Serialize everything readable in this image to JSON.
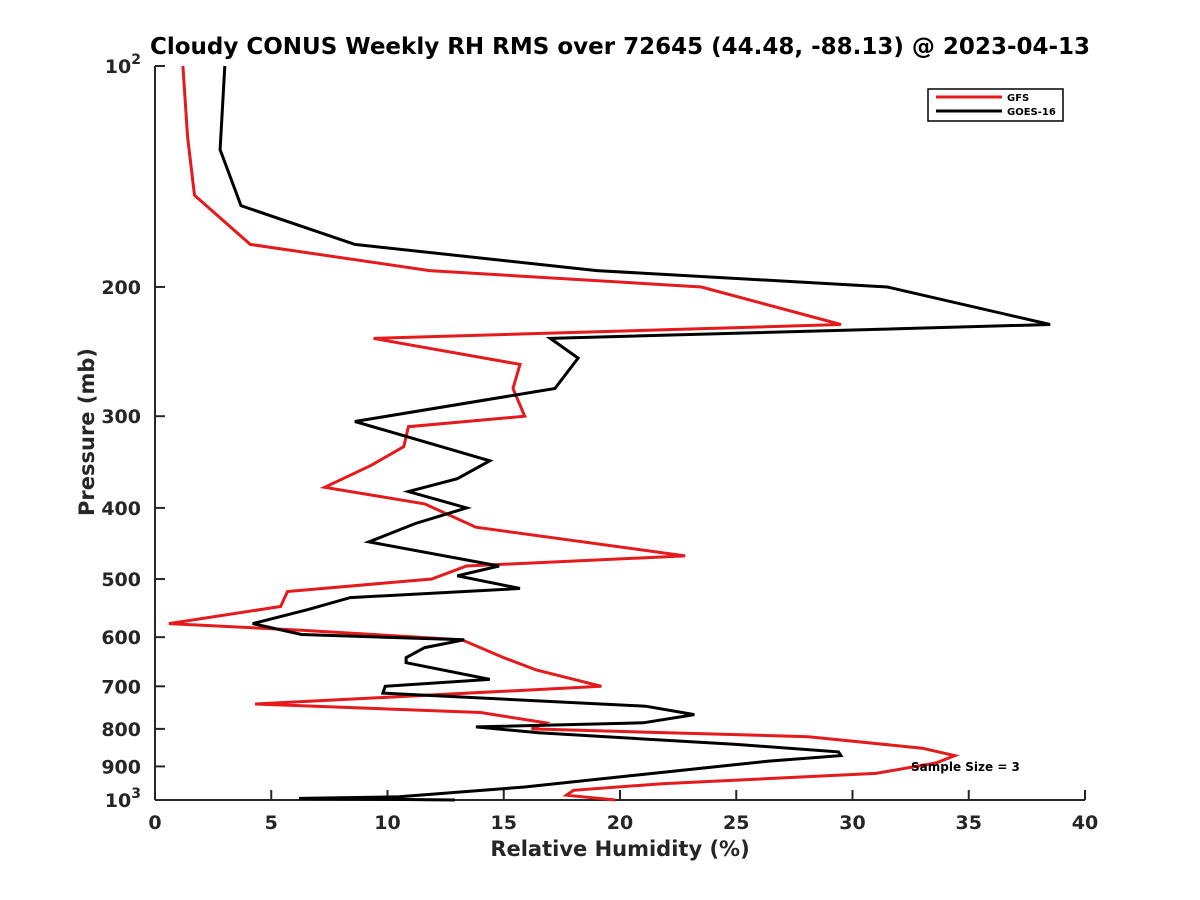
{
  "chart_data": {
    "type": "line",
    "title": "Cloudy CONUS Weekly RH RMS over 72645 (44.48, -88.13) @ 2023-04-13",
    "xlabel": "Relative Humidity (%)",
    "ylabel": "Pressure (mb)",
    "xlim": [
      0,
      40
    ],
    "ylim": [
      100,
      1000
    ],
    "y_scale": "log",
    "y_reversed": true,
    "x_ticks": [
      {
        "value": 0,
        "label": "0"
      },
      {
        "value": 5,
        "label": "5"
      },
      {
        "value": 10,
        "label": "10"
      },
      {
        "value": 15,
        "label": "15"
      },
      {
        "value": 20,
        "label": "20"
      },
      {
        "value": 25,
        "label": "25"
      },
      {
        "value": 30,
        "label": "30"
      },
      {
        "value": 35,
        "label": "35"
      },
      {
        "value": 40,
        "label": "40"
      }
    ],
    "y_ticks": [
      {
        "value": 100,
        "label": "10",
        "sup": "2"
      },
      {
        "value": 200,
        "label": "200"
      },
      {
        "value": 300,
        "label": "300"
      },
      {
        "value": 400,
        "label": "400"
      },
      {
        "value": 500,
        "label": "500"
      },
      {
        "value": 600,
        "label": "600"
      },
      {
        "value": 700,
        "label": "700"
      },
      {
        "value": 800,
        "label": "800"
      },
      {
        "value": 900,
        "label": "900"
      },
      {
        "value": 1000,
        "label": "10",
        "sup": "3"
      }
    ],
    "grid": false,
    "legend_position": "top-right",
    "annotation": "Sample Size = 3",
    "series": [
      {
        "name": "GFS",
        "color": "#e41a1c",
        "points": [
          [
            1.2,
            100
          ],
          [
            1.4,
            125
          ],
          [
            1.7,
            150
          ],
          [
            4.1,
            175
          ],
          [
            11.8,
            190
          ],
          [
            23.5,
            200
          ],
          [
            29.5,
            225
          ],
          [
            9.4,
            235
          ],
          [
            15.7,
            255
          ],
          [
            15.4,
            275
          ],
          [
            15.9,
            300
          ],
          [
            10.9,
            310
          ],
          [
            10.7,
            330
          ],
          [
            9.3,
            350
          ],
          [
            7.3,
            375
          ],
          [
            11.6,
            395
          ],
          [
            13.8,
            425
          ],
          [
            22.8,
            465
          ],
          [
            13.4,
            480
          ],
          [
            11.9,
            500
          ],
          [
            5.7,
            520
          ],
          [
            5.4,
            545
          ],
          [
            0.6,
            575
          ],
          [
            6.3,
            587
          ],
          [
            13.2,
            605
          ],
          [
            15.0,
            640
          ],
          [
            16.4,
            665
          ],
          [
            19.2,
            700
          ],
          [
            4.3,
            740
          ],
          [
            14.0,
            760
          ],
          [
            16.8,
            785
          ],
          [
            16.2,
            800
          ],
          [
            28.1,
            820
          ],
          [
            33.0,
            850
          ],
          [
            34.4,
            870
          ],
          [
            33.6,
            890
          ],
          [
            31.0,
            920
          ],
          [
            21.9,
            950
          ],
          [
            18.0,
            970
          ],
          [
            17.7,
            985
          ],
          [
            19.8,
            1000
          ]
        ]
      },
      {
        "name": "GOES-16",
        "color": "#000000",
        "points": [
          [
            3.0,
            100
          ],
          [
            2.8,
            130
          ],
          [
            3.7,
            155
          ],
          [
            8.6,
            175
          ],
          [
            19.0,
            190
          ],
          [
            31.5,
            200
          ],
          [
            38.5,
            225
          ],
          [
            17.0,
            235
          ],
          [
            18.2,
            250
          ],
          [
            17.2,
            275
          ],
          [
            8.6,
            305
          ],
          [
            14.4,
            345
          ],
          [
            13.0,
            365
          ],
          [
            10.9,
            380
          ],
          [
            13.4,
            400
          ],
          [
            11.2,
            420
          ],
          [
            9.2,
            445
          ],
          [
            14.8,
            480
          ],
          [
            13.0,
            495
          ],
          [
            15.7,
            515
          ],
          [
            8.4,
            530
          ],
          [
            6.6,
            550
          ],
          [
            4.2,
            575
          ],
          [
            6.3,
            595
          ],
          [
            13.3,
            605
          ],
          [
            11.6,
            620
          ],
          [
            10.8,
            640
          ],
          [
            10.8,
            650
          ],
          [
            14.4,
            685
          ],
          [
            9.9,
            700
          ],
          [
            9.8,
            715
          ],
          [
            21.1,
            745
          ],
          [
            23.2,
            765
          ],
          [
            21.0,
            785
          ],
          [
            13.8,
            795
          ],
          [
            16.5,
            810
          ],
          [
            25.0,
            840
          ],
          [
            29.4,
            860
          ],
          [
            29.5,
            870
          ],
          [
            26.4,
            885
          ],
          [
            20.7,
            925
          ],
          [
            15.9,
            960
          ],
          [
            10.5,
            990
          ],
          [
            6.2,
            995
          ],
          [
            12.9,
            1000
          ]
        ]
      }
    ]
  }
}
